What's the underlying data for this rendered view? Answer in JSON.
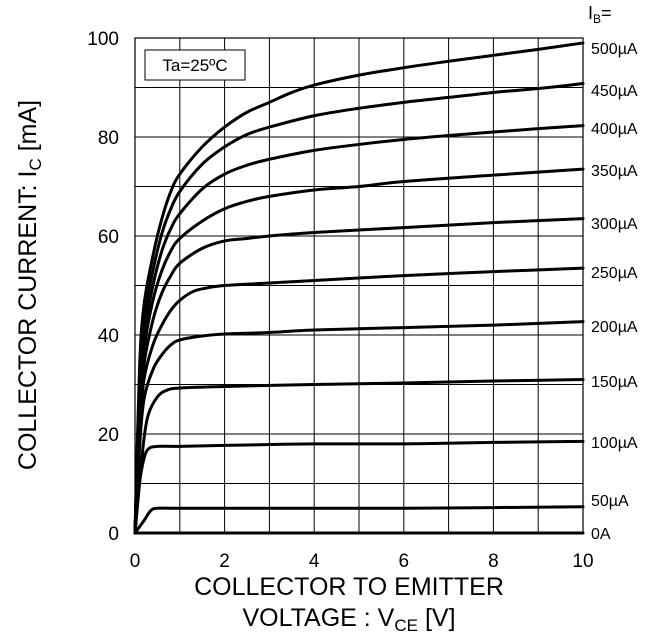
{
  "chart_data": {
    "type": "line",
    "annotation": "Ta=25ºC",
    "legend_title": {
      "main": "I",
      "sub": "B",
      "suffix": "="
    },
    "xlabel": {
      "line1": "COLLECTOR TO EMITTER",
      "line2_main": "VOLTAGE : V",
      "line2_sub": "CE",
      "line2_suffix": " [V]"
    },
    "ylabel": {
      "main": "COLLECTOR CURRENT: I",
      "sub": "C",
      "suffix": " [mA]"
    },
    "xlim": [
      0,
      10
    ],
    "ylim": [
      0,
      100
    ],
    "x_ticks": [
      "0",
      "2",
      "4",
      "6",
      "8",
      "10"
    ],
    "y_ticks": [
      "0",
      "20",
      "40",
      "60",
      "80",
      "100"
    ],
    "grid": true,
    "series": [
      {
        "name": "0A",
        "x": [
          0,
          10
        ],
        "y": [
          0,
          0
        ]
      },
      {
        "name": "50µA",
        "x": [
          0,
          0.2,
          0.35,
          0.5,
          1,
          3,
          6,
          10
        ],
        "y": [
          0,
          2.5,
          4.5,
          5,
          5,
          5,
          5,
          5.3
        ]
      },
      {
        "name": "100µA",
        "x": [
          0,
          0.1,
          0.2,
          0.3,
          0.5,
          1,
          2,
          4,
          6,
          8,
          10
        ],
        "y": [
          0,
          10,
          15,
          17,
          17.5,
          17.5,
          17.7,
          18,
          18,
          18.3,
          18.5
        ]
      },
      {
        "name": "150µA",
        "x": [
          0,
          0.1,
          0.2,
          0.3,
          0.5,
          0.7,
          1,
          2,
          4,
          6,
          8,
          10
        ],
        "y": [
          0,
          10,
          19,
          24,
          27.5,
          28.8,
          29.3,
          29.6,
          30,
          30.3,
          30.7,
          31
        ]
      },
      {
        "name": "200µA",
        "x": [
          0,
          0.1,
          0.2,
          0.4,
          0.6,
          0.8,
          1,
          1.5,
          2,
          3,
          4,
          6,
          8,
          10
        ],
        "y": [
          0,
          17,
          27,
          33,
          36,
          38,
          39,
          39.8,
          40.2,
          40.5,
          41,
          41.5,
          42,
          42.7
        ]
      },
      {
        "name": "250µA",
        "x": [
          0,
          0.1,
          0.2,
          0.4,
          0.6,
          0.8,
          1,
          1.3,
          1.6,
          2,
          3,
          4,
          6,
          8,
          10
        ],
        "y": [
          0,
          20,
          31,
          38,
          42,
          45,
          47,
          48.8,
          49.5,
          50,
          50.5,
          51,
          52,
          52.8,
          53.5
        ]
      },
      {
        "name": "300µA",
        "x": [
          0,
          0.1,
          0.2,
          0.4,
          0.6,
          0.8,
          1,
          1.5,
          2,
          2.5,
          3,
          4,
          6,
          8,
          10
        ],
        "y": [
          0,
          22,
          34,
          43,
          48.5,
          52,
          54.5,
          57.5,
          59,
          59.5,
          60,
          60.7,
          61.7,
          62.7,
          63.5
        ]
      },
      {
        "name": "350µA",
        "x": [
          0,
          0.1,
          0.2,
          0.4,
          0.6,
          0.8,
          1,
          1.5,
          2,
          2.5,
          3,
          4,
          5,
          6,
          8,
          10
        ],
        "y": [
          0,
          24,
          37,
          47,
          53,
          57,
          59.5,
          63,
          65.5,
          67,
          68,
          69.3,
          70,
          71,
          72.3,
          73.5
        ]
      },
      {
        "name": "400µA",
        "x": [
          0,
          0.1,
          0.2,
          0.4,
          0.6,
          0.8,
          1,
          1.5,
          2,
          2.5,
          3,
          4,
          5,
          6,
          7,
          8,
          9,
          10
        ],
        "y": [
          0,
          27,
          40,
          50,
          57,
          61.5,
          64.5,
          69.5,
          72.5,
          74.3,
          75.5,
          77.3,
          78.5,
          79.5,
          80.3,
          81,
          81.7,
          82.3
        ]
      },
      {
        "name": "450µA",
        "x": [
          0,
          0.1,
          0.2,
          0.4,
          0.6,
          0.8,
          1,
          1.5,
          2,
          2.5,
          3,
          4,
          5,
          6,
          7,
          8,
          9,
          10
        ],
        "y": [
          0,
          30,
          43,
          53,
          60.5,
          65.5,
          69,
          74.5,
          78,
          80.5,
          82,
          84.3,
          85.8,
          87,
          88,
          89,
          89.8,
          90.8
        ]
      },
      {
        "name": "500µA",
        "x": [
          0,
          0.1,
          0.2,
          0.4,
          0.6,
          0.8,
          1,
          1.5,
          2,
          2.5,
          3,
          3.5,
          4,
          5,
          6,
          7,
          8,
          9,
          10
        ],
        "y": [
          0,
          33,
          46,
          56,
          63.5,
          69,
          72.5,
          78,
          82,
          85,
          87,
          89,
          90.5,
          92.5,
          94,
          95.3,
          96.5,
          97.7,
          99
        ]
      }
    ]
  }
}
